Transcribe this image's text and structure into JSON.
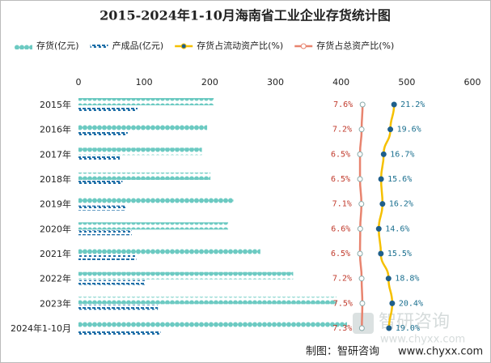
{
  "chart_data": {
    "type": "bar",
    "orientation": "horizontal",
    "title": "2015-2024年1-10月海南省工业企业存货统计图",
    "categories": [
      "2015年",
      "2016年",
      "2017年",
      "2018年",
      "2019年",
      "2020年",
      "2021年",
      "2022年",
      "2023年",
      "2024年1-10月"
    ],
    "xlim": [
      0,
      600
    ],
    "xticks": [
      0,
      100,
      200,
      300,
      400,
      500,
      600
    ],
    "x2lim": [
      -115,
      55
    ],
    "series": [
      {
        "name": "存货(亿元)",
        "type": "bar",
        "color": "#6ccac2",
        "values": [
          206,
          196,
          188,
          201,
          236,
          228,
          277,
          327,
          393,
          409
        ]
      },
      {
        "name": "产成品(亿元)",
        "type": "bar",
        "color": "#1f6fa8",
        "values": [
          90,
          75,
          63,
          67,
          72,
          81,
          88,
          102,
          121,
          125
        ]
      },
      {
        "name": "存货占流动资产比(%)",
        "type": "line",
        "axis": "x2",
        "color": "#f5c000",
        "marker_color": "#1f5f8b",
        "label_color": "#1a6f8f",
        "values": [
          21.2,
          19.6,
          16.7,
          15.6,
          16.2,
          14.6,
          15.5,
          18.8,
          20.4,
          19.0
        ],
        "value_labels": [
          "21.2%",
          "19.6%",
          "16.7%",
          "15.6%",
          "16.2%",
          "14.6%",
          "15.5%",
          "18.8%",
          "20.4%",
          "19.0%"
        ]
      },
      {
        "name": "存货占总资产比(%)",
        "type": "line",
        "axis": "x2",
        "color": "#e8846f",
        "marker_color": "#ffffff",
        "label_color": "#c0392b",
        "values": [
          7.6,
          7.2,
          6.5,
          6.5,
          7.1,
          6.6,
          6.5,
          7.2,
          7.5,
          7.3
        ],
        "value_labels": [
          "7.6%",
          "7.2%",
          "6.5%",
          "6.5%",
          "7.1%",
          "6.6%",
          "6.5%",
          "7.2%",
          "7.5%",
          "7.3%"
        ]
      }
    ],
    "source": "制图：智研咨询",
    "watermark": [
      "智研咨询",
      "www.chyxx.com"
    ]
  }
}
